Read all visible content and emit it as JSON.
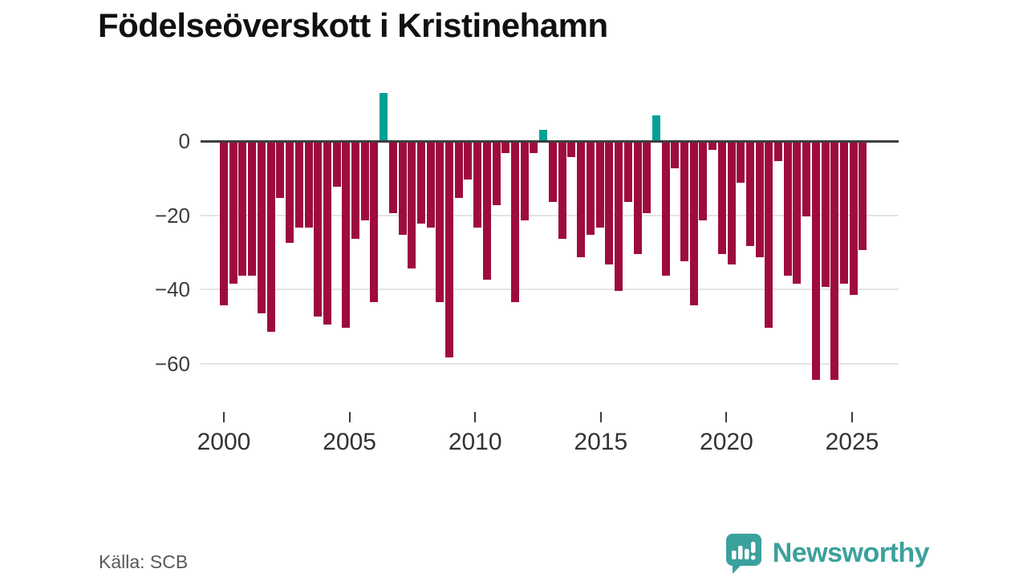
{
  "header": {
    "title": "Födelseöverskott i Kristinehamn"
  },
  "footer": {
    "source_label": "Källa: SCB",
    "brand_name": "Newsworthy",
    "brand_icon": "newsworthy-speech-bubble-chart-icon"
  },
  "colors": {
    "negative_bar": "#9e0c3e",
    "positive_bar": "#00a096",
    "brand_teal": "#3ba19c",
    "baseline": "#3d3d3d",
    "gridline": "#e4e4e4",
    "title_text": "#111111",
    "axis_text": "#333333",
    "source_text": "#595959"
  },
  "chart_data": {
    "type": "bar",
    "title": "Födelseöverskott i Kristinehamn",
    "xlabel": "",
    "ylabel": "",
    "ylim": [
      -68,
      16
    ],
    "xlim": [
      1999.2,
      2027
    ],
    "grid": "horizontal",
    "legend": "none",
    "y_ticks": [
      {
        "value": 0,
        "label": "0"
      },
      {
        "value": -20,
        "label": "−20"
      },
      {
        "value": -40,
        "label": "−40"
      },
      {
        "value": -60,
        "label": "−60"
      }
    ],
    "x_ticks": [
      {
        "value": 2000,
        "label": "2000"
      },
      {
        "value": 2005,
        "label": "2005"
      },
      {
        "value": 2010,
        "label": "2010"
      },
      {
        "value": 2015,
        "label": "2015"
      },
      {
        "value": 2020,
        "label": "2020"
      },
      {
        "value": 2025,
        "label": "2025"
      }
    ],
    "x": [
      2000.0,
      2000.37,
      2000.75,
      2001.12,
      2001.5,
      2001.87,
      2002.24,
      2002.62,
      2002.99,
      2003.37,
      2003.74,
      2004.11,
      2004.49,
      2004.86,
      2005.24,
      2005.61,
      2005.98,
      2006.36,
      2006.73,
      2007.11,
      2007.48,
      2007.85,
      2008.23,
      2008.6,
      2008.98,
      2009.35,
      2009.72,
      2010.1,
      2010.47,
      2010.85,
      2011.22,
      2011.59,
      2011.97,
      2012.34,
      2012.72,
      2013.09,
      2013.46,
      2013.84,
      2014.21,
      2014.59,
      2014.96,
      2015.33,
      2015.71,
      2016.08,
      2016.46,
      2016.83,
      2017.2,
      2017.58,
      2017.95,
      2018.33,
      2018.7,
      2019.07,
      2019.45,
      2019.82,
      2020.2,
      2020.57,
      2020.94,
      2021.32,
      2021.69,
      2022.07,
      2022.44,
      2022.81,
      2023.19,
      2023.56,
      2023.94,
      2024.31,
      2024.68,
      2025.06,
      2025.43
    ],
    "values": [
      -44,
      -38,
      -36,
      -36,
      -46,
      -51,
      -15,
      -27,
      -23,
      -23,
      -47,
      -49,
      -12,
      -50,
      -26,
      -21,
      -43,
      13,
      -19,
      -25,
      -34,
      -22,
      -23,
      -43,
      -58,
      -15,
      -10,
      -23,
      -37,
      -17,
      -3,
      -43,
      -21,
      -3,
      3,
      -16,
      -26,
      -4,
      -31,
      -25,
      -23,
      -33,
      -40,
      -16,
      -30,
      -19,
      7,
      -36,
      -7,
      -32,
      -44,
      -21,
      -2,
      -30,
      -33,
      -11,
      -28,
      -31,
      -50,
      -5,
      -36,
      -38,
      -20,
      -64,
      -39,
      -64,
      -38,
      -41,
      -29
    ]
  }
}
